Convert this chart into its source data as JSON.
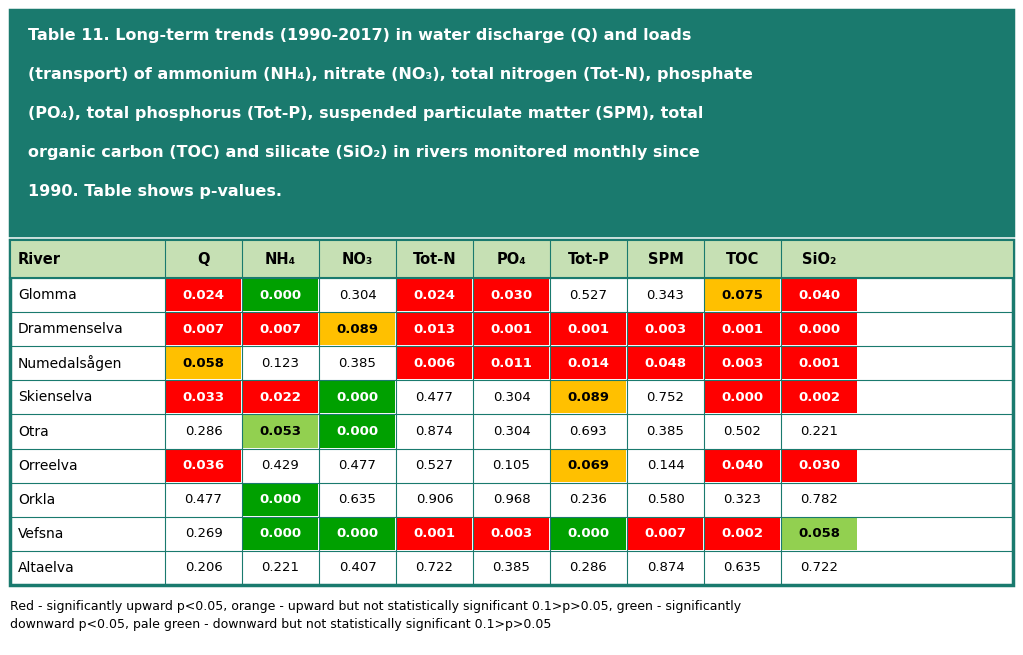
{
  "header_bg": "#1a7a6e",
  "header_text_color": "#ffffff",
  "columns": [
    "River",
    "Q",
    "NH₄",
    "NO₃",
    "Tot-N",
    "PO₄",
    "Tot-P",
    "SPM",
    "TOC",
    "SiO₂"
  ],
  "title_lines": [
    "Table 11. Long-term trends (1990-2017) in water discharge (Q) and loads",
    "(transport) of ammonium (NH₄), nitrate (NO₃), total nitrogen (Tot-N), phosphate",
    "(PO₄), total phosphorus (Tot-P), suspended particulate matter (SPM), total",
    "organic carbon (TOC) and silicate (SiO₂) in rivers monitored monthly since",
    "1990. Table shows p-values."
  ],
  "rows": [
    {
      "river": "Glomma",
      "values": [
        "0.024",
        "0.000",
        "0.304",
        "0.024",
        "0.030",
        "0.527",
        "0.343",
        "0.075",
        "0.040"
      ],
      "colors": [
        "red",
        "green",
        "none",
        "red",
        "red",
        "none",
        "none",
        "orange",
        "red"
      ]
    },
    {
      "river": "Drammenselva",
      "values": [
        "0.007",
        "0.007",
        "0.089",
        "0.013",
        "0.001",
        "0.001",
        "0.003",
        "0.001",
        "0.000"
      ],
      "colors": [
        "red",
        "red",
        "orange",
        "red",
        "red",
        "red",
        "red",
        "red",
        "red"
      ]
    },
    {
      "river": "Numedalsågen",
      "values": [
        "0.058",
        "0.123",
        "0.385",
        "0.006",
        "0.011",
        "0.014",
        "0.048",
        "0.003",
        "0.001"
      ],
      "colors": [
        "orange",
        "none",
        "none",
        "red",
        "red",
        "red",
        "red",
        "red",
        "red"
      ]
    },
    {
      "river": "Skienselva",
      "values": [
        "0.033",
        "0.022",
        "0.000",
        "0.477",
        "0.304",
        "0.089",
        "0.752",
        "0.000",
        "0.002"
      ],
      "colors": [
        "red",
        "red",
        "green",
        "none",
        "none",
        "orange",
        "none",
        "red",
        "red"
      ]
    },
    {
      "river": "Otra",
      "values": [
        "0.286",
        "0.053",
        "0.000",
        "0.874",
        "0.304",
        "0.693",
        "0.385",
        "0.502",
        "0.221"
      ],
      "colors": [
        "none",
        "pale_green",
        "green",
        "none",
        "none",
        "none",
        "none",
        "none",
        "none"
      ]
    },
    {
      "river": "Orreelva",
      "values": [
        "0.036",
        "0.429",
        "0.477",
        "0.527",
        "0.105",
        "0.069",
        "0.144",
        "0.040",
        "0.030"
      ],
      "colors": [
        "red",
        "none",
        "none",
        "none",
        "none",
        "orange",
        "none",
        "red",
        "red"
      ]
    },
    {
      "river": "Orkla",
      "values": [
        "0.477",
        "0.000",
        "0.635",
        "0.906",
        "0.968",
        "0.236",
        "0.580",
        "0.323",
        "0.782"
      ],
      "colors": [
        "none",
        "green",
        "none",
        "none",
        "none",
        "none",
        "none",
        "none",
        "none"
      ]
    },
    {
      "river": "Vefsna",
      "values": [
        "0.269",
        "0.000",
        "0.000",
        "0.001",
        "0.003",
        "0.000",
        "0.007",
        "0.002",
        "0.058"
      ],
      "colors": [
        "none",
        "green",
        "green",
        "red",
        "red",
        "green",
        "red",
        "red",
        "pale_green"
      ]
    },
    {
      "river": "Altaelva",
      "values": [
        "0.206",
        "0.221",
        "0.407",
        "0.722",
        "0.385",
        "0.286",
        "0.874",
        "0.635",
        "0.722"
      ],
      "colors": [
        "none",
        "none",
        "none",
        "none",
        "none",
        "none",
        "none",
        "none",
        "none"
      ]
    }
  ],
  "color_map": {
    "red": "#ff0000",
    "orange": "#ffc000",
    "green": "#00a000",
    "pale_green": "#92d050",
    "none": "#ffffff"
  },
  "footer": "Red - significantly upward p<0.05, orange - upward but not statistically significant 0.1>p>0.05, green - significantly\ndownward p<0.05, pale green - downward but not statistically significant 0.1>p>0.05",
  "table_border_color": "#1a7a6e",
  "header_row_bg": "#c6e0b4"
}
